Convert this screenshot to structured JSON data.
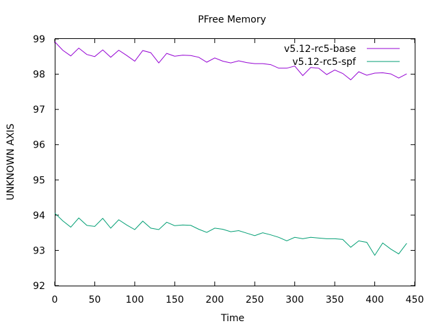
{
  "chart_data": {
    "type": "line",
    "title": "PFree Memory",
    "xlabel": "Time",
    "ylabel": "UNKNOWN AXIS",
    "xlim": [
      0,
      450
    ],
    "ylim": [
      92,
      99
    ],
    "xticks": [
      0,
      50,
      100,
      150,
      200,
      250,
      300,
      350,
      400,
      450
    ],
    "yticks": [
      92,
      93,
      94,
      95,
      96,
      97,
      98,
      99
    ],
    "grid": false,
    "legend_position": "top-right",
    "series": [
      {
        "name": "v5.12-rc5-base",
        "color": "#9400d3",
        "x": [
          0,
          10,
          20,
          30,
          40,
          50,
          60,
          70,
          80,
          90,
          100,
          110,
          120,
          130,
          140,
          150,
          160,
          170,
          180,
          190,
          200,
          210,
          220,
          230,
          240,
          250,
          260,
          270,
          280,
          290,
          300,
          310,
          320,
          330,
          340,
          350,
          360,
          370,
          380,
          390,
          400,
          410,
          420,
          430,
          440
        ],
        "y": [
          98.92,
          98.68,
          98.52,
          98.74,
          98.56,
          98.5,
          98.69,
          98.48,
          98.68,
          98.53,
          98.37,
          98.67,
          98.61,
          98.32,
          98.59,
          98.51,
          98.54,
          98.53,
          98.48,
          98.34,
          98.46,
          98.37,
          98.32,
          98.38,
          98.33,
          98.3,
          98.3,
          98.27,
          98.17,
          98.17,
          98.23,
          97.96,
          98.19,
          98.17,
          97.99,
          98.12,
          98.02,
          97.84,
          98.07,
          97.97,
          98.03,
          98.04,
          98.01,
          97.89,
          98.01
        ]
      },
      {
        "name": "v5.12-rc5-spf",
        "color": "#009e73",
        "x": [
          0,
          10,
          20,
          30,
          40,
          50,
          60,
          70,
          80,
          90,
          100,
          110,
          120,
          130,
          140,
          150,
          160,
          170,
          180,
          190,
          200,
          210,
          220,
          230,
          240,
          250,
          260,
          270,
          280,
          290,
          300,
          310,
          320,
          330,
          340,
          350,
          360,
          370,
          380,
          390,
          400,
          410,
          420,
          430,
          440
        ],
        "y": [
          94.06,
          93.84,
          93.66,
          93.92,
          93.71,
          93.68,
          93.91,
          93.63,
          93.87,
          93.72,
          93.59,
          93.83,
          93.63,
          93.59,
          93.8,
          93.7,
          93.72,
          93.71,
          93.6,
          93.51,
          93.63,
          93.6,
          93.53,
          93.56,
          93.49,
          93.42,
          93.5,
          93.44,
          93.37,
          93.27,
          93.37,
          93.33,
          93.37,
          93.35,
          93.33,
          93.33,
          93.31,
          93.09,
          93.27,
          93.23,
          92.86,
          93.21,
          93.04,
          92.9,
          93.2
        ]
      }
    ]
  }
}
